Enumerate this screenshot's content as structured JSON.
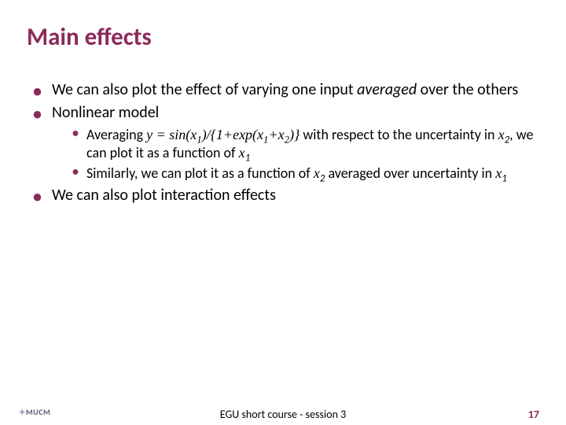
{
  "colors": {
    "title": "#8c2a5a",
    "bullet_marker": "#8c2a5a",
    "body_text": "#000000",
    "footer_text": "#000000",
    "page_number": "#8c2a5a",
    "background": "#ffffff"
  },
  "typography": {
    "title_fontsize": 31,
    "body_fontsize": 20,
    "sub_body_fontsize": 18,
    "footer_fontsize": 14
  },
  "title": "Main effects",
  "bullets": [
    {
      "runs": [
        {
          "text": "We can also plot the effect of varying one input "
        },
        {
          "text": "averaged",
          "italic": true
        },
        {
          "text": " over the others"
        }
      ]
    },
    {
      "runs": [
        {
          "text": "Nonlinear model"
        }
      ],
      "sub": [
        {
          "runs": [
            {
              "text": "Averaging "
            },
            {
              "text": "y = sin(x",
              "serif_italic": true
            },
            {
              "text": "1",
              "subscript_serif": true
            },
            {
              "text": ")/{1+exp(x",
              "serif_italic": true
            },
            {
              "text": "1",
              "subscript_serif": true
            },
            {
              "text": "+x",
              "serif_italic": true
            },
            {
              "text": "2",
              "subscript_serif": true
            },
            {
              "text": ")}",
              "serif_italic": true
            },
            {
              "text": " with respect to the uncertainty in "
            },
            {
              "text": "x",
              "serif_italic": true
            },
            {
              "text": "2",
              "subscript_cal": true
            },
            {
              "text": ", we can plot it as a function of "
            },
            {
              "text": "x",
              "serif_italic": true
            },
            {
              "text": "1",
              "subscript_cal": true
            }
          ]
        },
        {
          "runs": [
            {
              "text": "Similarly, we can plot it as a function of "
            },
            {
              "text": "x",
              "serif_italic": true
            },
            {
              "text": "2",
              "subscript_cal": true
            },
            {
              "text": " averaged over uncertainty in "
            },
            {
              "text": "x",
              "serif_italic": true
            },
            {
              "text": "1",
              "subscript_cal": true
            }
          ]
        }
      ]
    },
    {
      "runs": [
        {
          "text": "We can also plot interaction effects"
        }
      ]
    }
  ],
  "footer": {
    "center": "EGU short course - session 3",
    "page_number": "17"
  },
  "logo": "MUCM"
}
